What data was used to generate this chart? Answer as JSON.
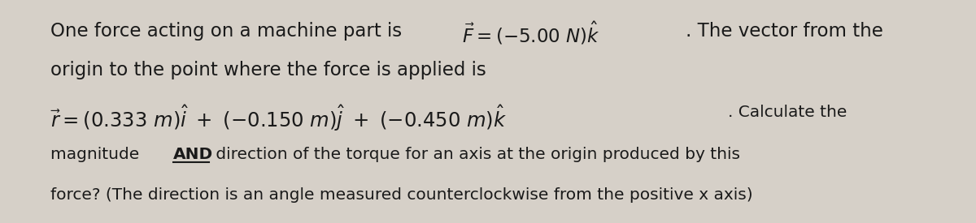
{
  "background_color": "#d6d0c8",
  "figsize": [
    12.0,
    2.75
  ],
  "dpi": 100,
  "text_color": "#1a1a1a",
  "font_size_main": 16.5,
  "font_size_small": 14.5,
  "line1_plain_start": "One force acting on a machine part is ",
  "line1_math": "$\\vec{F} = (-5.00\\ N)\\hat{k}$",
  "line1_plain_end": ". The vector from the",
  "line2": "origin to the point where the force is applied is",
  "line3_math": "$\\vec{r} = (0.333\\ m)\\hat{i}\\ +\\ (-0.150\\ m)\\hat{j}\\ +\\ (-0.450\\ m)\\hat{k}$",
  "line3_plain_end": ". Calculate the",
  "line4_plain_start": "magnitude ",
  "line4_underline": "AND",
  "line4_plain_end": " direction of the torque for an axis at the origin produced by this",
  "line5": "force? (The direction is an angle measured counterclockwise from the positive x axis)"
}
